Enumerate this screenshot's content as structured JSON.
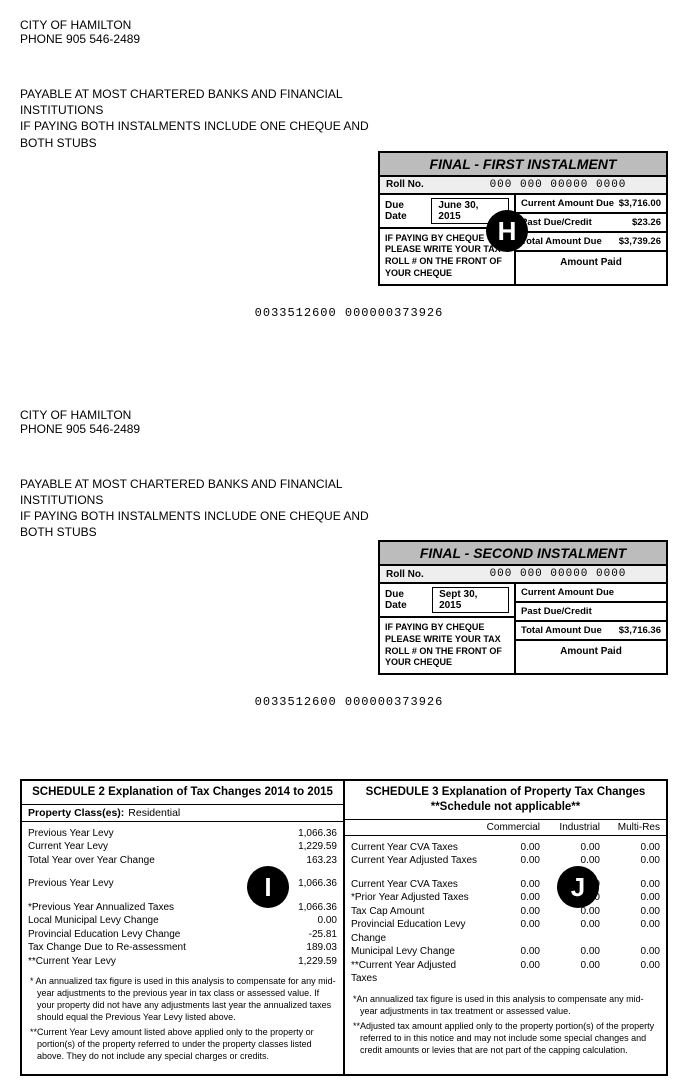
{
  "org": {
    "name": "CITY OF HAMILTON",
    "phone_label": "PHONE",
    "phone": "905 546-2489"
  },
  "payable_text": "PAYABLE AT MOST CHARTERED BANKS AND FINANCIAL INSTITUTIONS\nIF PAYING BOTH INSTALMENTS INCLUDE ONE CHEQUE AND BOTH STUBS",
  "cheque_note": "IF PAYING BY CHEQUE PLEASE WRITE YOUR TAX ROLL # ON THE FRONT OF YOUR CHEQUE",
  "code_line": "0033512600 000000373926",
  "roll_label": "Roll No.",
  "roll_value": "000 000 00000 0000",
  "due_label": "Due Date",
  "amount_labels": {
    "current_due": "Current Amount Due",
    "past_due": "Past Due/Credit",
    "total_due": "Total Amount Due",
    "amount_paid": "Amount Paid"
  },
  "stub1": {
    "title": "FINAL - FIRST INSTALMENT",
    "due_date": "June 30, 2015",
    "current_due": "$3,716.00",
    "past_due": "$23.26",
    "total_due": "$3,739.26"
  },
  "stub2": {
    "title": "FINAL - SECOND INSTALMENT",
    "due_date": "Sept 30, 2015",
    "current_due": "",
    "past_due": "",
    "total_due": "$3,716.36"
  },
  "markers": {
    "h": "H",
    "i": "I",
    "j": "J"
  },
  "schedule2": {
    "title": "SCHEDULE 2 Explanation of Tax Changes 2014 to 2015",
    "class_label": "Property Class(es):",
    "class_value": "Residential",
    "rows1": [
      {
        "label": "Previous Year Levy",
        "value": "1,066.36"
      },
      {
        "label": "Current Year Levy",
        "value": "1,229.59"
      },
      {
        "label": "Total Year over Year Change",
        "value": "163.23"
      }
    ],
    "rows2": [
      {
        "label": "Previous Year Levy",
        "value": "1,066.36"
      }
    ],
    "rows3": [
      {
        "label": "*Previous Year Annualized Taxes",
        "value": "1,066.36"
      },
      {
        "label": "Local Municipal Levy Change",
        "value": "0.00"
      },
      {
        "label": "Provincial Education Levy Change",
        "value": "-25.81"
      },
      {
        "label": "Tax Change Due to Re-assessment",
        "value": "189.03"
      },
      {
        "label": "**Current Year Levy",
        "value": "1,229.59"
      }
    ],
    "footnotes": [
      "*  An annualized tax figure is used in this analysis to compensate for any mid-year adjustments to the previous year in tax class or assessed value. If your property did not have any adjustments last year the annualized taxes should equal the Previous Year Levy listed above.",
      "**Current Year Levy amount listed above applied only to the property or portion(s) of the property referred to under the property classes listed above.  They do not include any special charges or credits."
    ]
  },
  "schedule3": {
    "title": "SCHEDULE 3 Explanation of Property Tax Changes",
    "subtitle": "**Schedule not applicable**",
    "columns": [
      "Commercial",
      "Industrial",
      "Multi-Res"
    ],
    "rows1": [
      {
        "label": "Current Year CVA Taxes",
        "c": "0.00",
        "i": "0.00",
        "m": "0.00"
      },
      {
        "label": "Current Year Adjusted Taxes",
        "c": "0.00",
        "i": "0.00",
        "m": "0.00"
      }
    ],
    "rows2": [
      {
        "label": "Current Year CVA Taxes",
        "c": "0.00",
        "i": "0.00",
        "m": "0.00"
      },
      {
        "label": "*Prior Year Adjusted Taxes",
        "c": "0.00",
        "i": "0.00",
        "m": "0.00"
      },
      {
        "label": "Tax Cap Amount",
        "c": "0.00",
        "i": "0.00",
        "m": "0.00"
      },
      {
        "label": "Provincial Education Levy Change",
        "c": "0.00",
        "i": "0.00",
        "m": "0.00"
      },
      {
        "label": "Municipal Levy Change",
        "c": "0.00",
        "i": "0.00",
        "m": "0.00"
      },
      {
        "label": "**Current Year Adjusted Taxes",
        "c": "0.00",
        "i": "0.00",
        "m": "0.00"
      }
    ],
    "footnotes": [
      "*An annualized tax figure is used in this analysis to compensate any mid-year adjustments in tax treatment or assessed value.",
      "**Adjusted tax amount applied only to the property portion(s) of the property referred to in this notice and may not include some special changes and credit amounts or levies that are not part of the capping calculation."
    ]
  }
}
